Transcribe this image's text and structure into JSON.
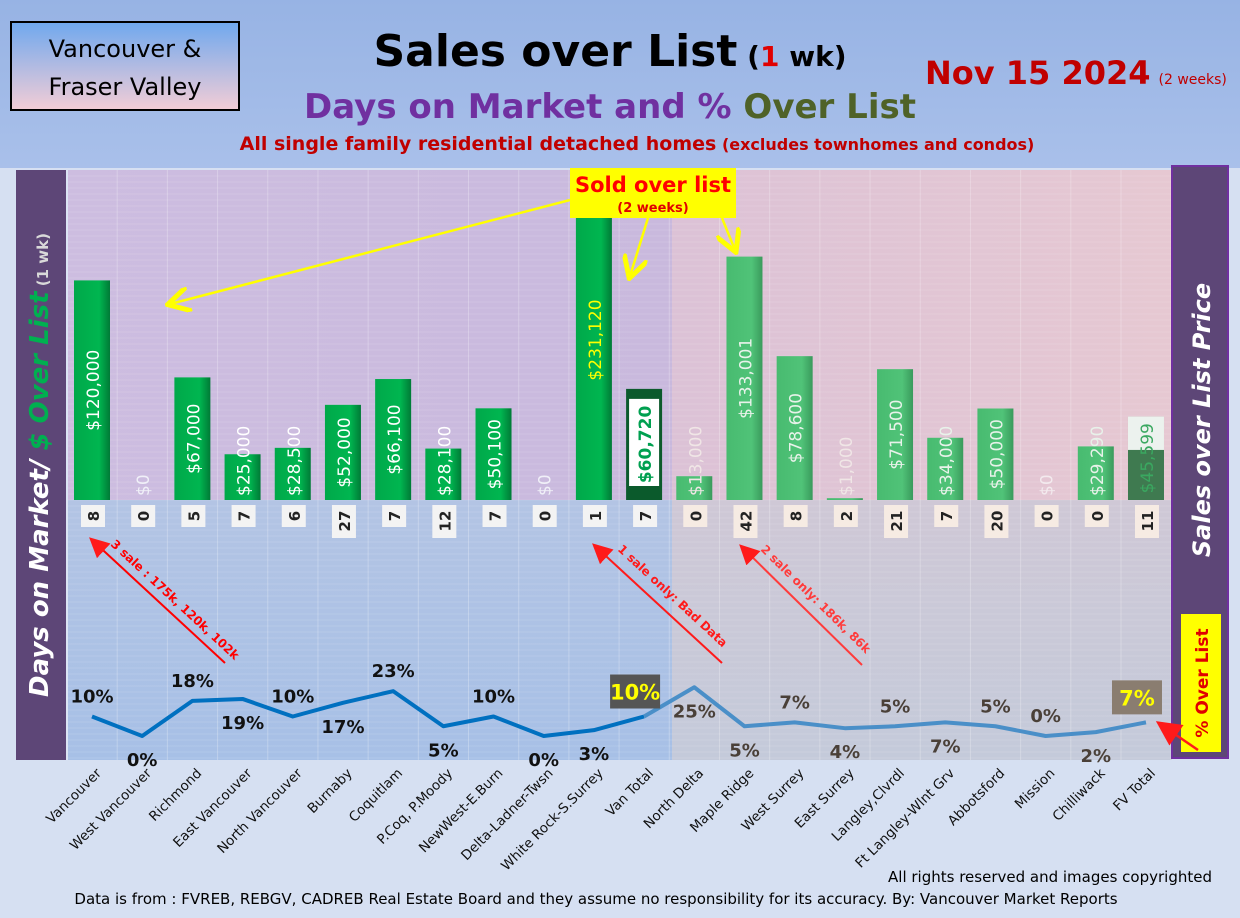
{
  "header": {
    "region_box": [
      "Vancouver &",
      "Fraser Valley"
    ],
    "title": "Sales over List",
    "title_paren_open": "(",
    "title_num": "1",
    "title_unit": " wk)",
    "subtitle_a": "Days on Market and % ",
    "subtitle_b": "Over List",
    "description": "All single family residential detached homes",
    "description_small": "(excludes townhomes and condos)",
    "date": "Nov 15  2024",
    "date_note": "(2 weeks)"
  },
  "left_axis": {
    "a": "Days on Market/ ",
    "b": "$ Over List",
    "c": " (1 wk)"
  },
  "right_axis": {
    "title": "Sales over List Price",
    "pct_label": "% Over List"
  },
  "callout": {
    "title": "Sold over list",
    "sub": "(2 weeks)"
  },
  "annotations": [
    "3 sale : 175k, 120k, 102k",
    "1 sale only: Bad Data",
    "2 sale only: 186k, 86k"
  ],
  "footer": {
    "copyright": "All rights reserved and  images copyrighted",
    "source": "Data is from : FVREB, REBGV, CADREB Real Estate Board and they assume no responsibility for its accuracy. By: Vancouver Market Reports"
  },
  "colors": {
    "bar": "#00b050",
    "bar_fv": "#4cc174",
    "line_van": "#0070c0",
    "line_fv": "#4a8fc8",
    "title_red": "#c00000",
    "purple": "#7030a0"
  },
  "chart_data": {
    "type": "bar+line",
    "categories": [
      "Vancouver",
      "West Vancouver",
      "Richmond",
      "East Vancouver",
      "North Vancouver",
      "Burnaby",
      "Coquitlam",
      "P.Coq, P.Moody",
      "NewWest-E.Burn",
      "Delta-Ladner-Twsn",
      "White Rock-S.Surrey",
      "Van Total",
      "North Delta",
      "Maple Ridge",
      "West Surrey",
      "East Surrey",
      "Langley,Clvrdl",
      "Ft Langley-Wlnt Grv",
      "Abbotsford",
      "Mission",
      "Chilliwack",
      "FV Total"
    ],
    "series": [
      {
        "name": "$ Over List",
        "values": [
          120000,
          0,
          67000,
          25000,
          28500,
          52000,
          66100,
          28100,
          50100,
          0,
          231120,
          60720,
          13000,
          133001,
          78600,
          1000,
          71500,
          34000,
          50000,
          0,
          29290,
          45599
        ],
        "labels": [
          "$120,000",
          "$0",
          "$67,000",
          "$25,000",
          "$28,500",
          "$52,000",
          "$66,100",
          "$28,100",
          "$50,100",
          "$0",
          "$231,120",
          "$60,720",
          "$13,000",
          "$133,001",
          "$78,600",
          "$1,000",
          "$71,500",
          "$34,000",
          "$50,000",
          "$0",
          "$29,290",
          "$45,599"
        ]
      },
      {
        "name": "Days on Market",
        "values": [
          8,
          0,
          5,
          7,
          6,
          27,
          7,
          12,
          7,
          0,
          1,
          7,
          0,
          42,
          8,
          2,
          21,
          7,
          20,
          0,
          0,
          11
        ]
      },
      {
        "name": "% Over List",
        "values": [
          10,
          0,
          18,
          19,
          10,
          17,
          23,
          5,
          10,
          0,
          3,
          10,
          25,
          5,
          7,
          4,
          5,
          7,
          5,
          0,
          2,
          7
        ],
        "label_pos": [
          "above",
          "below",
          "above",
          "below",
          "above",
          "below",
          "above",
          "below",
          "above",
          "below",
          "below",
          "above",
          "below",
          "below",
          "above",
          "below",
          "above",
          "below",
          "above",
          "above",
          "below",
          "above"
        ]
      }
    ]
  }
}
